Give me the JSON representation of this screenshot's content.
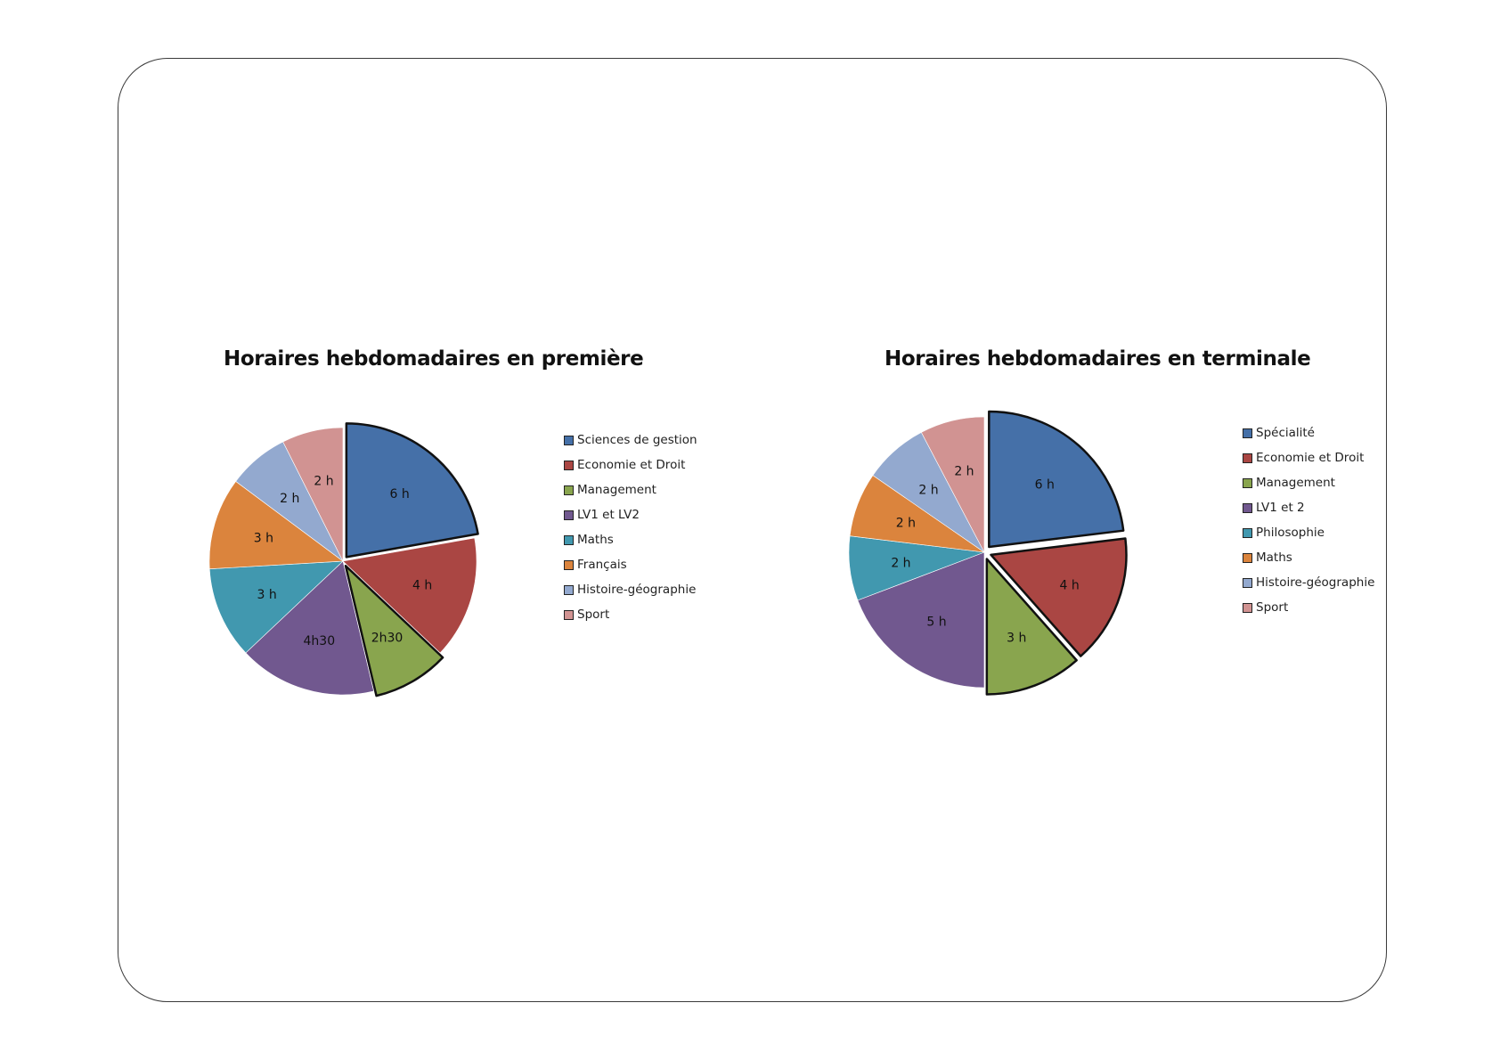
{
  "chart_data": [
    {
      "type": "pie",
      "title": "Horaires hebdomadaires en première",
      "unit": "h",
      "categories": [
        "Sciences de gestion",
        "Economie et Droit",
        "Management",
        "LV1 et LV2",
        "Maths",
        "Français",
        "Histoire-géographie",
        "Sport"
      ],
      "values": [
        6,
        4,
        2.5,
        4.5,
        3,
        3,
        2,
        2
      ],
      "data_labels": [
        "6 h",
        "4 h",
        "2h30",
        "4h30",
        "3 h",
        "3 h",
        "2 h",
        "2 h"
      ],
      "colors": [
        "#4570A8",
        "#AA4643",
        "#89A54E",
        "#71588F",
        "#4198AF",
        "#DB843D",
        "#93A9CF",
        "#D19392"
      ],
      "exploded": [
        "Sciences de gestion",
        "Management"
      ],
      "legend": "right"
    },
    {
      "type": "pie",
      "title": "Horaires hebdomadaires en terminale",
      "unit": "h",
      "categories": [
        "Spécialité",
        "Economie et Droit",
        "Management",
        "LV1 et 2",
        "Philosophie",
        "Maths",
        "Histoire-géographie",
        "Sport"
      ],
      "values": [
        6,
        4,
        3,
        5,
        2,
        2,
        2,
        2
      ],
      "data_labels": [
        "6 h",
        "4 h",
        "3 h",
        "5 h",
        "2 h",
        "2 h",
        "2 h",
        "2 h"
      ],
      "colors": [
        "#4570A8",
        "#AA4643",
        "#89A54E",
        "#71588F",
        "#4198AF",
        "#DB843D",
        "#93A9CF",
        "#D19392"
      ],
      "exploded": [
        "Spécialité",
        "Economie et Droit",
        "Management"
      ],
      "legend": "right"
    }
  ]
}
